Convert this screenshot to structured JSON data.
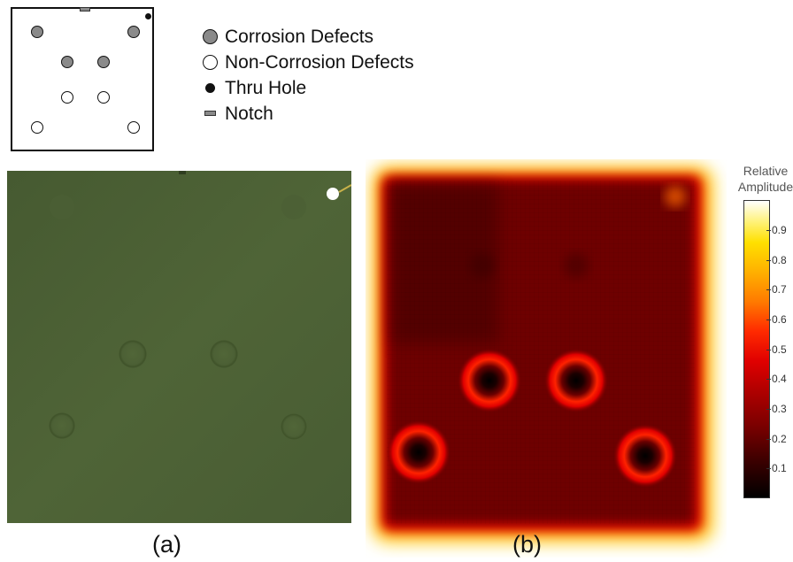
{
  "legend": {
    "items": [
      {
        "symbol": "corrosion",
        "label": "Corrosion Defects"
      },
      {
        "symbol": "non-corrosion",
        "label": "Non-Corrosion Defects"
      },
      {
        "symbol": "thru-hole",
        "label": "Thru Hole"
      },
      {
        "symbol": "notch",
        "label": "Notch"
      }
    ]
  },
  "schematic": {
    "marks": [
      "notch",
      "thru-hole",
      "corrosion",
      "corrosion",
      "corrosion",
      "corrosion",
      "non-corrosion",
      "non-corrosion",
      "non-corrosion",
      "non-corrosion"
    ]
  },
  "colorbar": {
    "title_line1": "Relative",
    "title_line2": "Amplitude",
    "ticks": [
      "0.9",
      "0.8",
      "0.7",
      "0.6",
      "0.5",
      "0.4",
      "0.3",
      "0.2",
      "0.1"
    ],
    "colormap": "hot",
    "colors": {
      "low": "#000000",
      "mid": "#e00000",
      "high": "#ffffff"
    }
  },
  "panels": {
    "a_label": "(a)",
    "b_label": "(b)"
  },
  "colors": {
    "plate_green": "#4a5d33",
    "corrosion_fill": "#8a8a8a"
  }
}
